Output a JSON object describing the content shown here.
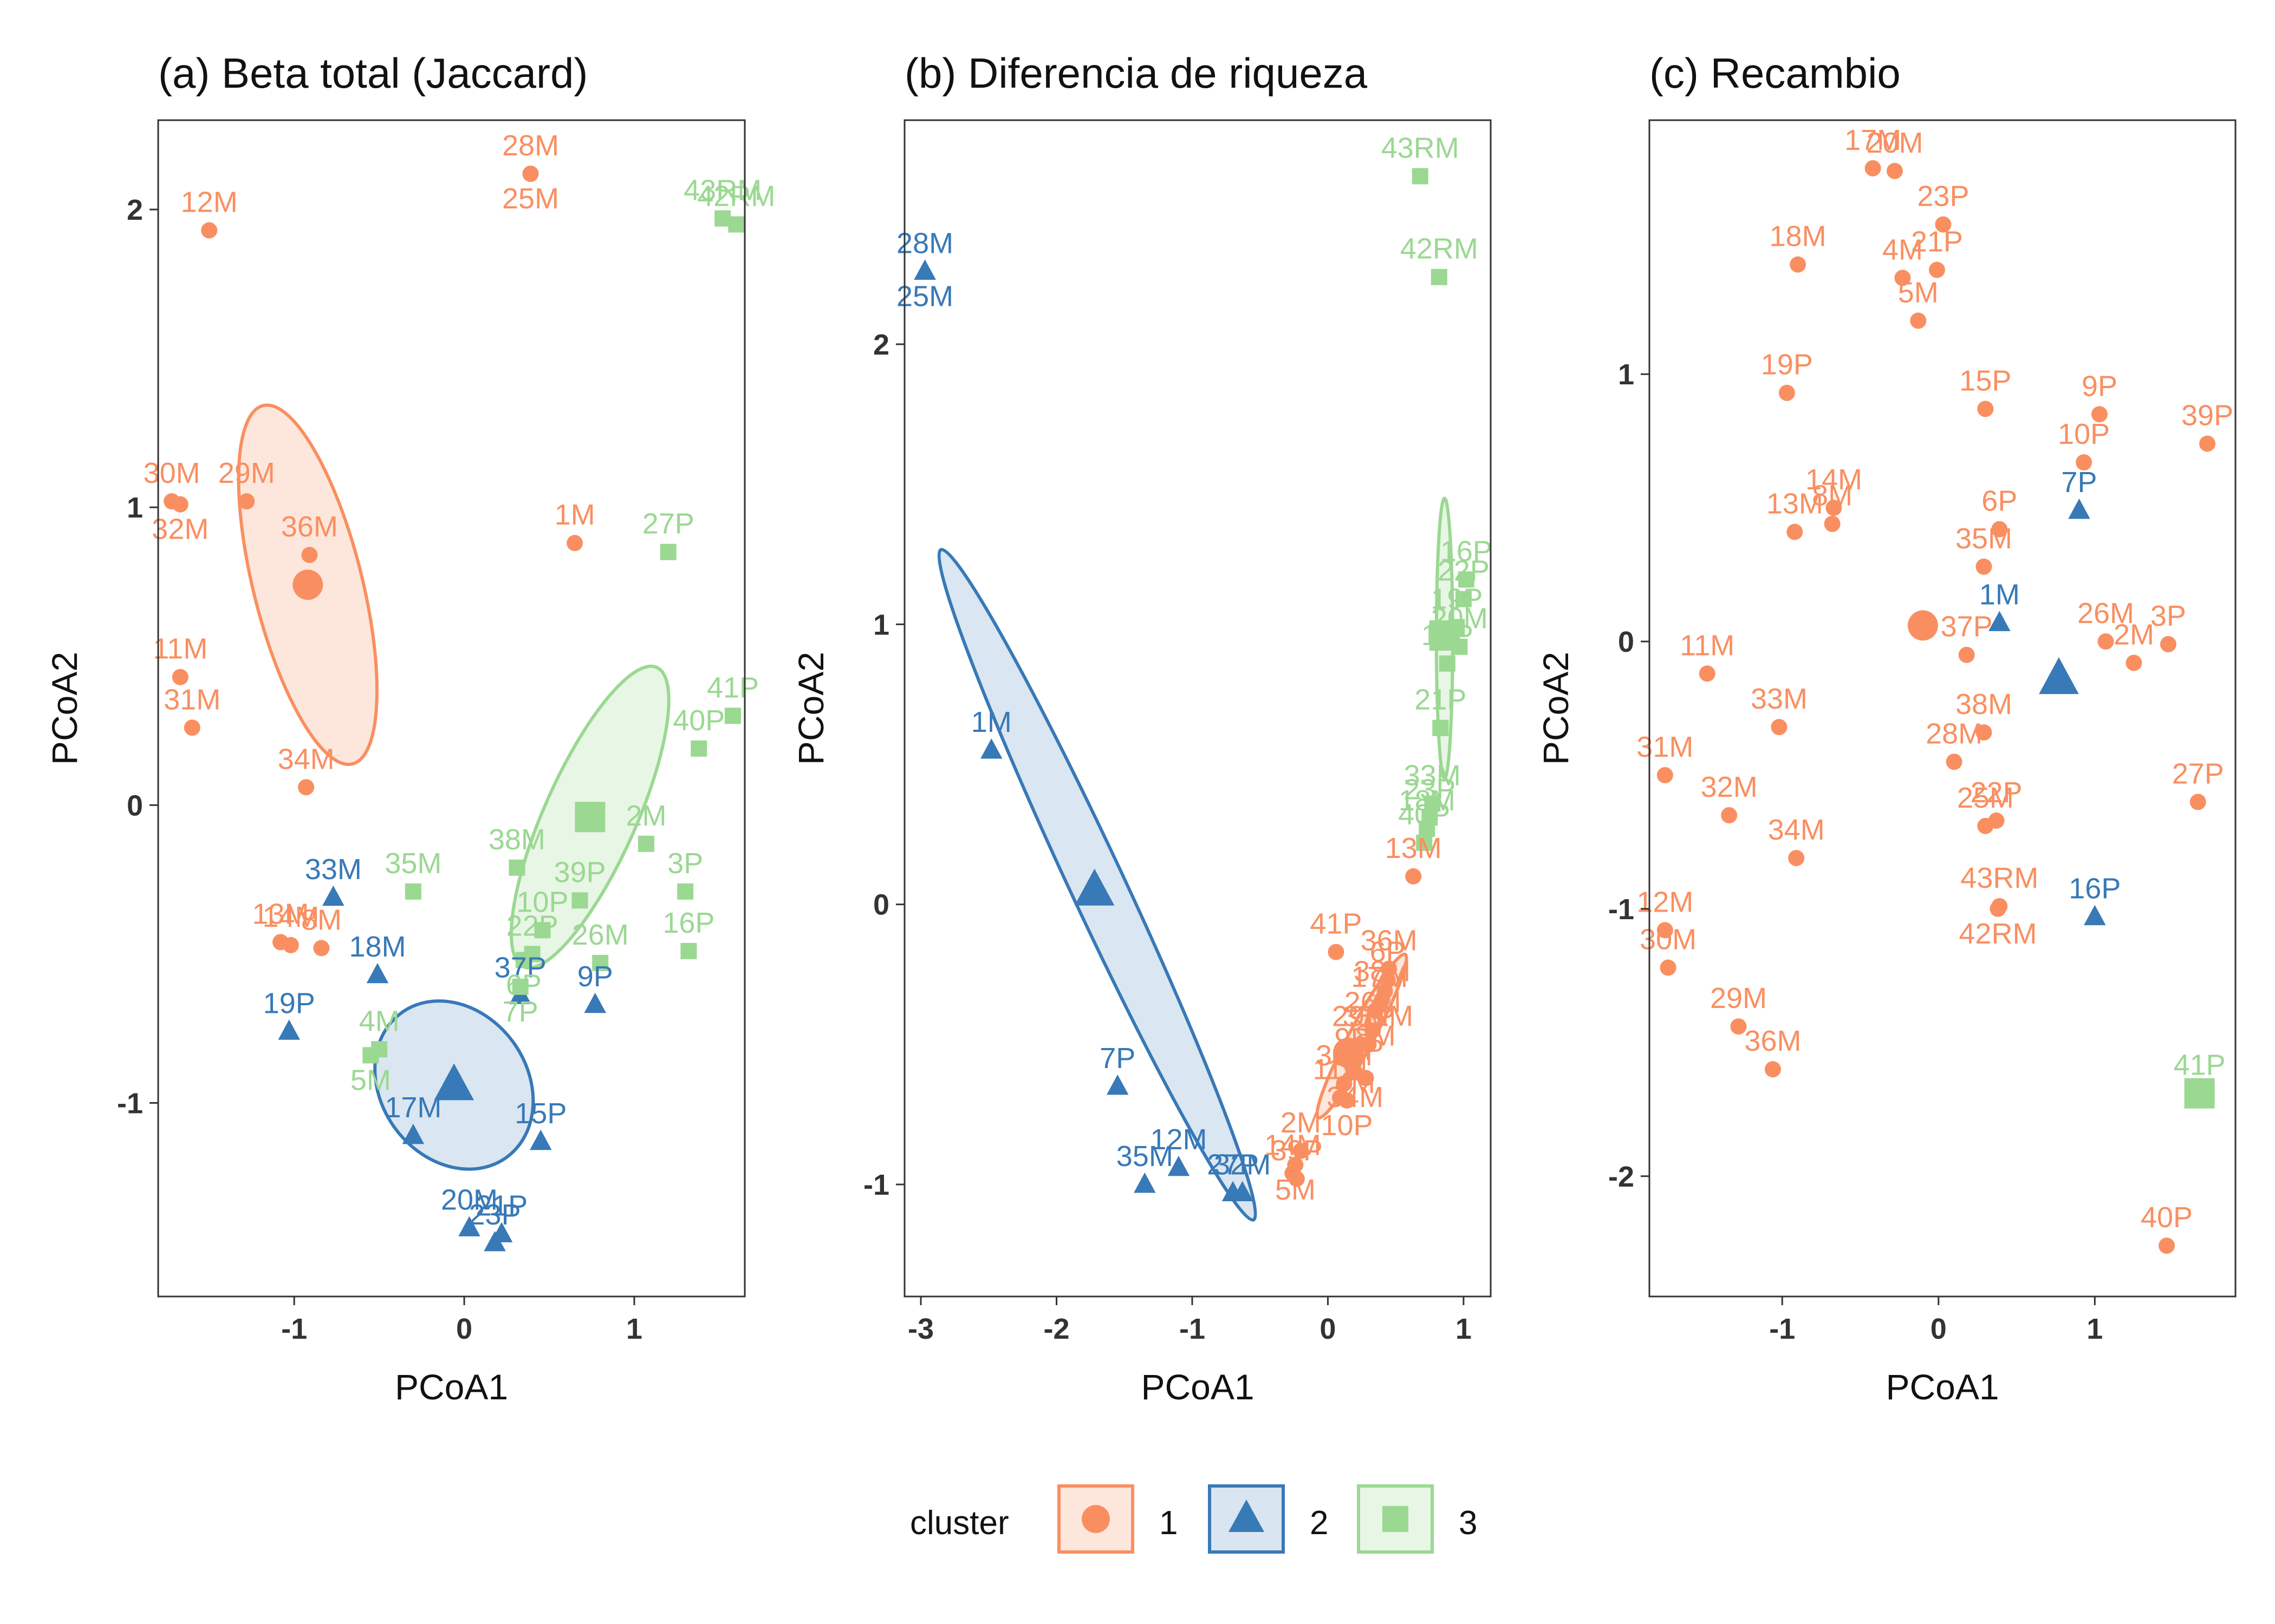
{
  "colors": {
    "1": "#f98f61",
    "2": "#3879b7",
    "3": "#9bd892"
  },
  "legend": {
    "title": "cluster",
    "items": [
      "1",
      "2",
      "3"
    ]
  },
  "chart_data": [
    {
      "type": "scatter",
      "title": "(a) Beta total (Jaccard)",
      "xlabel": "PCoA1",
      "ylabel": "PCoA2",
      "xlim": [
        -1.8,
        1.65
      ],
      "ylim": [
        -1.65,
        2.3
      ],
      "xticks": [
        -1,
        0,
        1
      ],
      "yticks": [
        -1,
        0,
        1,
        2
      ],
      "centroids": [
        {
          "cluster": "1",
          "x": -0.92,
          "y": 0.74
        },
        {
          "cluster": "2",
          "x": -0.06,
          "y": -0.94
        },
        {
          "cluster": "3",
          "x": 0.74,
          "y": -0.04
        }
      ],
      "ellipses": [
        {
          "cluster": "1",
          "cx": -0.92,
          "cy": 0.74,
          "rx": 0.32,
          "ry": 0.62,
          "angle": -14
        },
        {
          "cluster": "2",
          "cx": -0.06,
          "cy": -0.94,
          "rx": 0.43,
          "ry": 0.3,
          "angle": -36
        },
        {
          "cluster": "3",
          "cx": 0.74,
          "cy": -0.04,
          "rx": 0.27,
          "ry": 0.55,
          "angle": 24
        }
      ],
      "points": [
        {
          "label": "28M",
          "x": 0.39,
          "y": 2.12,
          "cluster": "1"
        },
        {
          "label": "25M",
          "x": 0.39,
          "y": 2.12,
          "cluster": "1"
        },
        {
          "label": "12M",
          "x": -1.5,
          "y": 1.93,
          "cluster": "1"
        },
        {
          "label": "30M",
          "x": -1.72,
          "y": 1.02,
          "cluster": "1"
        },
        {
          "label": "32M",
          "x": -1.67,
          "y": 1.01,
          "cluster": "1"
        },
        {
          "label": "29M",
          "x": -1.28,
          "y": 1.02,
          "cluster": "1"
        },
        {
          "label": "36M",
          "x": -0.91,
          "y": 0.84,
          "cluster": "1"
        },
        {
          "label": "1M",
          "x": 0.65,
          "y": 0.88,
          "cluster": "1"
        },
        {
          "label": "11M",
          "x": -1.67,
          "y": 0.43,
          "cluster": "1"
        },
        {
          "label": "31M",
          "x": -1.6,
          "y": 0.26,
          "cluster": "1"
        },
        {
          "label": "34M",
          "x": -0.93,
          "y": 0.06,
          "cluster": "1"
        },
        {
          "label": "13M",
          "x": -1.08,
          "y": -0.46,
          "cluster": "1"
        },
        {
          "label": "14M",
          "x": -1.02,
          "y": -0.47,
          "cluster": "1"
        },
        {
          "label": "8M",
          "x": -0.84,
          "y": -0.48,
          "cluster": "1"
        },
        {
          "label": "33M",
          "x": -0.77,
          "y": -0.31,
          "cluster": "2"
        },
        {
          "label": "18M",
          "x": -0.51,
          "y": -0.57,
          "cluster": "2"
        },
        {
          "label": "19P",
          "x": -1.03,
          "y": -0.76,
          "cluster": "2"
        },
        {
          "label": "37P",
          "x": 0.33,
          "y": -0.64,
          "cluster": "2"
        },
        {
          "label": "9P",
          "x": 0.77,
          "y": -0.67,
          "cluster": "2"
        },
        {
          "label": "17M",
          "x": -0.3,
          "y": -1.11,
          "cluster": "2"
        },
        {
          "label": "15P",
          "x": 0.45,
          "y": -1.13,
          "cluster": "2"
        },
        {
          "label": "20M",
          "x": 0.03,
          "y": -1.42,
          "cluster": "2"
        },
        {
          "label": "21P",
          "x": 0.22,
          "y": -1.44,
          "cluster": "2"
        },
        {
          "label": "23P",
          "x": 0.18,
          "y": -1.47,
          "cluster": "2"
        },
        {
          "label": "43RM",
          "x": 1.52,
          "y": 1.97,
          "cluster": "3"
        },
        {
          "label": "42RM",
          "x": 1.6,
          "y": 1.95,
          "cluster": "3"
        },
        {
          "label": "27P",
          "x": 1.2,
          "y": 0.85,
          "cluster": "3"
        },
        {
          "label": "41P",
          "x": 1.58,
          "y": 0.3,
          "cluster": "3"
        },
        {
          "label": "40P",
          "x": 1.38,
          "y": 0.19,
          "cluster": "3"
        },
        {
          "label": "38M",
          "x": 0.31,
          "y": -0.21,
          "cluster": "3"
        },
        {
          "label": "39P",
          "x": 0.68,
          "y": -0.32,
          "cluster": "3"
        },
        {
          "label": "2M",
          "x": 1.07,
          "y": -0.13,
          "cluster": "3"
        },
        {
          "label": "35M",
          "x": -0.3,
          "y": -0.29,
          "cluster": "3"
        },
        {
          "label": "10P",
          "x": 0.46,
          "y": -0.42,
          "cluster": "3"
        },
        {
          "label": "22P",
          "x": 0.4,
          "y": -0.5,
          "cluster": "3"
        },
        {
          "label": "6P",
          "x": 0.35,
          "y": -0.52,
          "cluster": "3"
        },
        {
          "label": "26M",
          "x": 0.8,
          "y": -0.53,
          "cluster": "3"
        },
        {
          "label": "3P",
          "x": 1.3,
          "y": -0.29,
          "cluster": "3"
        },
        {
          "label": "16P",
          "x": 1.32,
          "y": -0.49,
          "cluster": "3"
        },
        {
          "label": "7P",
          "x": 0.33,
          "y": -0.61,
          "cluster": "3"
        },
        {
          "label": "4M",
          "x": -0.5,
          "y": -0.82,
          "cluster": "3"
        },
        {
          "label": "5M",
          "x": -0.55,
          "y": -0.84,
          "cluster": "3"
        }
      ]
    },
    {
      "type": "scatter",
      "title": "(b) Diferencia de riqueza",
      "xlabel": "PCoA1",
      "ylabel": "PCoA2",
      "xlim": [
        -3.12,
        1.2
      ],
      "ylim": [
        -1.4,
        2.8
      ],
      "xticks": [
        -3,
        -2,
        -1,
        0,
        1
      ],
      "yticks": [
        -1,
        0,
        1,
        2
      ],
      "centroids": [
        {
          "cluster": "1",
          "x": 0.15,
          "y": -0.53
        },
        {
          "cluster": "2",
          "x": -1.72,
          "y": 0.05
        },
        {
          "cluster": "3",
          "x": 0.86,
          "y": 0.96
        }
      ],
      "ellipses": [
        {
          "cluster": "1",
          "cx": 0.25,
          "cy": -0.47,
          "rx": 0.09,
          "ry": 0.33,
          "angle": 28
        },
        {
          "cluster": "2",
          "cx": -1.7,
          "cy": 0.07,
          "rx": 0.2,
          "ry": 1.32,
          "angle": -25
        },
        {
          "cluster": "3",
          "cx": 0.86,
          "cy": 0.95,
          "rx": 0.06,
          "ry": 0.5,
          "angle": 0
        }
      ],
      "points": [
        {
          "label": "28M",
          "x": -2.97,
          "y": 2.26,
          "cluster": "2"
        },
        {
          "label": "25M",
          "x": -2.97,
          "y": 2.26,
          "cluster": "2"
        },
        {
          "label": "1M",
          "x": -2.48,
          "y": 0.55,
          "cluster": "2"
        },
        {
          "label": "7P",
          "x": -1.55,
          "y": -0.65,
          "cluster": "2"
        },
        {
          "label": "12M",
          "x": -1.1,
          "y": -0.94,
          "cluster": "2"
        },
        {
          "label": "35M",
          "x": -1.35,
          "y": -1.0,
          "cluster": "2"
        },
        {
          "label": "27P",
          "x": -0.7,
          "y": -1.03,
          "cluster": "2"
        },
        {
          "label": "32M",
          "x": -0.63,
          "y": -1.03,
          "cluster": "2"
        },
        {
          "label": "43RM",
          "x": 0.68,
          "y": 2.6,
          "cluster": "3"
        },
        {
          "label": "42RM",
          "x": 0.82,
          "y": 2.24,
          "cluster": "3"
        },
        {
          "label": "16P",
          "x": 1.02,
          "y": 1.16,
          "cluster": "3"
        },
        {
          "label": "22P",
          "x": 1.0,
          "y": 1.09,
          "cluster": "3"
        },
        {
          "label": "19P",
          "x": 0.95,
          "y": 0.99,
          "cluster": "3"
        },
        {
          "label": "20M",
          "x": 0.97,
          "y": 0.92,
          "cluster": "3"
        },
        {
          "label": "15P",
          "x": 0.88,
          "y": 0.86,
          "cluster": "3"
        },
        {
          "label": "21P",
          "x": 0.83,
          "y": 0.63,
          "cluster": "3"
        },
        {
          "label": "33M",
          "x": 0.77,
          "y": 0.36,
          "cluster": "3"
        },
        {
          "label": "23P",
          "x": 0.75,
          "y": 0.31,
          "cluster": "3"
        },
        {
          "label": "18M",
          "x": 0.73,
          "y": 0.27,
          "cluster": "3"
        },
        {
          "label": "40P",
          "x": 0.71,
          "y": 0.22,
          "cluster": "3"
        },
        {
          "label": "13M",
          "x": 0.63,
          "y": 0.1,
          "cluster": "1"
        },
        {
          "label": "41P",
          "x": 0.06,
          "y": -0.17,
          "cluster": "1"
        },
        {
          "label": "36M",
          "x": 0.45,
          "y": -0.23,
          "cluster": "1"
        },
        {
          "label": "6P",
          "x": 0.44,
          "y": -0.27,
          "cluster": "1"
        },
        {
          "label": "31M",
          "x": 0.42,
          "y": -0.31,
          "cluster": "1"
        },
        {
          "label": "38M",
          "x": 0.4,
          "y": -0.34,
          "cluster": "1"
        },
        {
          "label": "17M",
          "x": 0.38,
          "y": -0.36,
          "cluster": "1"
        },
        {
          "label": "8M",
          "x": 0.35,
          "y": -0.38,
          "cluster": "1"
        },
        {
          "label": "29M",
          "x": 0.24,
          "y": -0.5,
          "cluster": "1"
        },
        {
          "label": "4M",
          "x": 0.2,
          "y": -0.55,
          "cluster": "1"
        },
        {
          "label": "9P",
          "x": 0.18,
          "y": -0.58,
          "cluster": "1"
        },
        {
          "label": "26M",
          "x": 0.33,
          "y": -0.45,
          "cluster": "1"
        },
        {
          "label": "37P",
          "x": 0.3,
          "y": -0.5,
          "cluster": "1"
        },
        {
          "label": "30M",
          "x": 0.12,
          "y": -0.64,
          "cluster": "1"
        },
        {
          "label": "11M",
          "x": 0.09,
          "y": -0.69,
          "cluster": "1"
        },
        {
          "label": "3P",
          "x": 0.28,
          "y": -0.62,
          "cluster": "1"
        },
        {
          "label": "34M",
          "x": 0.2,
          "y": -0.6,
          "cluster": "1"
        },
        {
          "label": "10P",
          "x": 0.14,
          "y": -0.7,
          "cluster": "1"
        },
        {
          "label": "2M",
          "x": -0.2,
          "y": -0.88,
          "cluster": "1"
        },
        {
          "label": "5M",
          "x": -0.24,
          "y": -0.93,
          "cluster": "1"
        },
        {
          "label": "14M",
          "x": -0.26,
          "y": -0.96,
          "cluster": "1"
        },
        {
          "label": "39P",
          "x": -0.23,
          "y": -0.98,
          "cluster": "1"
        }
      ]
    },
    {
      "type": "scatter",
      "title": "(c) Recambio",
      "xlabel": "PCoA1",
      "ylabel": "PCoA2",
      "xlim": [
        -1.85,
        1.9
      ],
      "ylim": [
        -2.45,
        1.95
      ],
      "xticks": [
        -1,
        0,
        1
      ],
      "yticks": [
        -2,
        -1,
        0,
        1
      ],
      "centroids": [
        {
          "cluster": "1",
          "x": -0.1,
          "y": 0.06
        },
        {
          "cluster": "2",
          "x": 0.77,
          "y": -0.14
        },
        {
          "cluster": "3",
          "x": 1.67,
          "y": -1.69
        }
      ],
      "ellipses": [],
      "points": [
        {
          "label": "17M",
          "x": -0.42,
          "y": 1.77,
          "cluster": "1"
        },
        {
          "label": "20M",
          "x": -0.28,
          "y": 1.76,
          "cluster": "1"
        },
        {
          "label": "23P",
          "x": 0.03,
          "y": 1.56,
          "cluster": "1"
        },
        {
          "label": "18M",
          "x": -0.9,
          "y": 1.41,
          "cluster": "1"
        },
        {
          "label": "4M",
          "x": -0.23,
          "y": 1.36,
          "cluster": "1"
        },
        {
          "label": "21P",
          "x": -0.01,
          "y": 1.39,
          "cluster": "1"
        },
        {
          "label": "5M",
          "x": -0.13,
          "y": 1.2,
          "cluster": "1"
        },
        {
          "label": "19P",
          "x": -0.97,
          "y": 0.93,
          "cluster": "1"
        },
        {
          "label": "15P",
          "x": 0.3,
          "y": 0.87,
          "cluster": "1"
        },
        {
          "label": "9P",
          "x": 1.03,
          "y": 0.85,
          "cluster": "1"
        },
        {
          "label": "10P",
          "x": 0.93,
          "y": 0.67,
          "cluster": "1"
        },
        {
          "label": "39P",
          "x": 1.72,
          "y": 0.74,
          "cluster": "1"
        },
        {
          "label": "14M",
          "x": -0.67,
          "y": 0.5,
          "cluster": "1"
        },
        {
          "label": "8M",
          "x": -0.68,
          "y": 0.44,
          "cluster": "1"
        },
        {
          "label": "13M",
          "x": -0.92,
          "y": 0.41,
          "cluster": "1"
        },
        {
          "label": "6P",
          "x": 0.39,
          "y": 0.42,
          "cluster": "1"
        },
        {
          "label": "35M",
          "x": 0.29,
          "y": 0.28,
          "cluster": "1"
        },
        {
          "label": "26M",
          "x": 1.07,
          "y": 0.0,
          "cluster": "1"
        },
        {
          "label": "3P",
          "x": 1.47,
          "y": -0.01,
          "cluster": "1"
        },
        {
          "label": "37P",
          "x": 0.18,
          "y": -0.05,
          "cluster": "1"
        },
        {
          "label": "2M",
          "x": 1.25,
          "y": -0.08,
          "cluster": "1"
        },
        {
          "label": "11M",
          "x": -1.48,
          "y": -0.12,
          "cluster": "1"
        },
        {
          "label": "38M",
          "x": 0.29,
          "y": -0.34,
          "cluster": "1"
        },
        {
          "label": "33M",
          "x": -1.02,
          "y": -0.32,
          "cluster": "1"
        },
        {
          "label": "28M",
          "x": 0.1,
          "y": -0.45,
          "cluster": "1"
        },
        {
          "label": "31M",
          "x": -1.75,
          "y": -0.5,
          "cluster": "1"
        },
        {
          "label": "22P",
          "x": 0.37,
          "y": -0.67,
          "cluster": "1"
        },
        {
          "label": "25M",
          "x": 0.3,
          "y": -0.69,
          "cluster": "1"
        },
        {
          "label": "27P",
          "x": 1.66,
          "y": -0.6,
          "cluster": "1"
        },
        {
          "label": "32M",
          "x": -1.34,
          "y": -0.65,
          "cluster": "1"
        },
        {
          "label": "34M",
          "x": -0.91,
          "y": -0.81,
          "cluster": "1"
        },
        {
          "label": "43RM",
          "x": 0.39,
          "y": -0.99,
          "cluster": "1"
        },
        {
          "label": "42RM",
          "x": 0.38,
          "y": -1.0,
          "cluster": "1"
        },
        {
          "label": "12M",
          "x": -1.75,
          "y": -1.08,
          "cluster": "1"
        },
        {
          "label": "30M",
          "x": -1.73,
          "y": -1.22,
          "cluster": "1"
        },
        {
          "label": "29M",
          "x": -1.28,
          "y": -1.44,
          "cluster": "1"
        },
        {
          "label": "36M",
          "x": -1.06,
          "y": -1.6,
          "cluster": "1"
        },
        {
          "label": "40P",
          "x": 1.46,
          "y": -2.26,
          "cluster": "1"
        },
        {
          "label": "7P",
          "x": 0.9,
          "y": 0.49,
          "cluster": "2"
        },
        {
          "label": "1M",
          "x": 0.39,
          "y": 0.07,
          "cluster": "2"
        },
        {
          "label": "16P",
          "x": 1.0,
          "y": -1.03,
          "cluster": "2"
        },
        {
          "label": "41P",
          "x": 1.67,
          "y": -1.69,
          "cluster": "3"
        }
      ]
    }
  ]
}
